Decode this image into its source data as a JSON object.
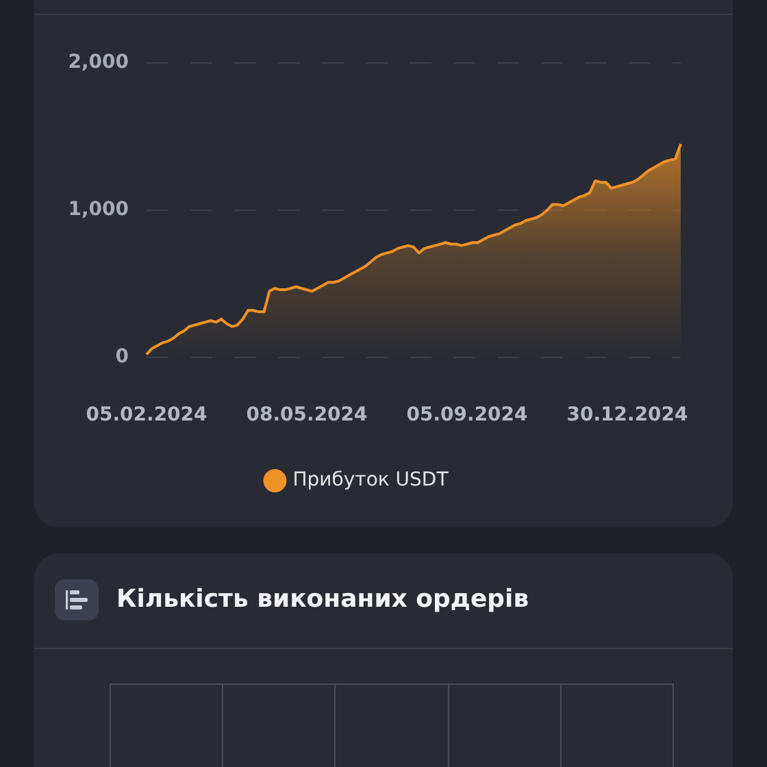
{
  "chart_data": [
    {
      "type": "area",
      "categories": [
        "05.02.2024",
        null,
        null,
        null,
        null,
        null,
        null,
        null,
        null,
        null,
        null,
        null,
        null,
        null,
        null,
        null,
        null,
        null,
        null,
        null,
        null,
        null,
        null,
        null,
        null,
        null,
        null,
        null,
        null,
        null,
        "08.05.2024",
        null,
        null,
        null,
        null,
        null,
        null,
        null,
        null,
        null,
        null,
        null,
        null,
        null,
        null,
        null,
        null,
        null,
        null,
        null,
        null,
        null,
        null,
        null,
        null,
        null,
        null,
        null,
        null,
        null,
        "05.09.2024",
        null,
        null,
        null,
        null,
        null,
        null,
        null,
        null,
        null,
        null,
        null,
        null,
        null,
        null,
        null,
        null,
        null,
        null,
        null,
        null,
        null,
        null,
        null,
        null,
        null,
        null,
        null,
        null,
        null,
        "30.12.2024",
        null,
        null,
        null,
        null,
        null,
        null,
        null,
        null,
        null,
        null
      ],
      "series": [
        {
          "name": "Прибуток USDT",
          "color": "#ef9227",
          "values": [
            20,
            60,
            80,
            100,
            110,
            130,
            160,
            180,
            210,
            220,
            230,
            240,
            250,
            240,
            260,
            230,
            210,
            220,
            260,
            320,
            320,
            310,
            310,
            450,
            470,
            460,
            460,
            470,
            480,
            470,
            460,
            450,
            470,
            490,
            510,
            510,
            520,
            540,
            560,
            580,
            600,
            620,
            650,
            680,
            700,
            710,
            720,
            740,
            750,
            760,
            750,
            710,
            740,
            750,
            760,
            770,
            780,
            770,
            770,
            760,
            770,
            780,
            780,
            800,
            820,
            830,
            840,
            860,
            880,
            900,
            910,
            930,
            940,
            950,
            970,
            1000,
            1040,
            1040,
            1030,
            1050,
            1070,
            1090,
            1100,
            1120,
            1200,
            1190,
            1190,
            1150,
            1160,
            1170,
            1180,
            1190,
            1210,
            1240,
            1270,
            1290,
            1310,
            1330,
            1340,
            1350,
            1450
          ]
        }
      ],
      "ylim": [
        0,
        2000
      ],
      "yticks": [
        0,
        {
          "value": 1000,
          "label": "1,000"
        },
        {
          "value": 2000,
          "label": "2,000"
        }
      ],
      "grid": "y",
      "legend": "bottom",
      "marker": "none"
    },
    {
      "type": "other",
      "title": "Кількість виконаних ордерів"
    }
  ]
}
